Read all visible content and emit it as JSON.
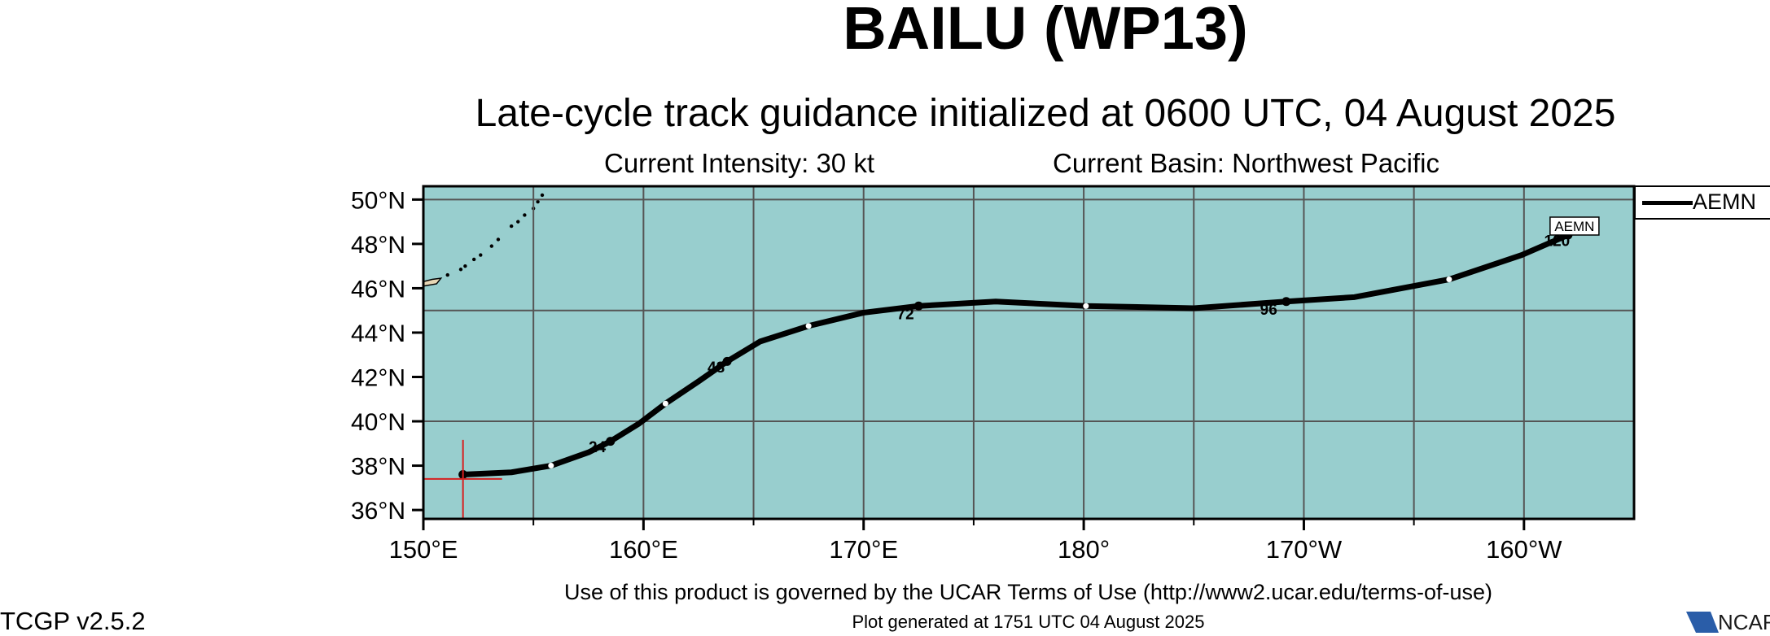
{
  "title": "BAILU (WP13)",
  "subtitle": "Late-cycle track guidance initialized at 0600 UTC, 04 August 2025",
  "intensity": "Current Intensity: 30 kt",
  "basin": "Current Basin: Northwest Pacific",
  "footer": {
    "terms": "Use of this product is governed by the UCAR Terms of Use (http://www2.ucar.edu/terms-of-use)",
    "generated": "Plot generated at 1751 UTC   04 August 2025",
    "version": "TCGP v2.5.2",
    "logo": "NCAR"
  },
  "legend": {
    "entries": [
      "AEMN"
    ]
  },
  "colors": {
    "ocean": "#98cece",
    "land": "#e8d7b5",
    "track": "#000000",
    "grid": "#555555",
    "current_position": "#d62020"
  },
  "chart_data": {
    "type": "map-track",
    "projection": "cylindrical",
    "lon_range_east": [
      150,
      205
    ],
    "lat_range": [
      35.6,
      50.6
    ],
    "lon_ticks": [
      {
        "lon": 150,
        "label": "150°E"
      },
      {
        "lon": 160,
        "label": "160°E"
      },
      {
        "lon": 170,
        "label": "170°E"
      },
      {
        "lon": 180,
        "label": "180°"
      },
      {
        "lon": 190,
        "label": "170°W"
      },
      {
        "lon": 200,
        "label": "160°W"
      }
    ],
    "lat_ticks": [
      {
        "lat": 36,
        "label": "36°N"
      },
      {
        "lat": 38,
        "label": "38°N"
      },
      {
        "lat": 40,
        "label": "40°N"
      },
      {
        "lat": 42,
        "label": "42°N"
      },
      {
        "lat": 44,
        "label": "44°N"
      },
      {
        "lat": 46,
        "label": "46°N"
      },
      {
        "lat": 48,
        "label": "48°N"
      },
      {
        "lat": 50,
        "label": "50°N"
      }
    ],
    "grid_lon": [
      155,
      160,
      165,
      170,
      175,
      180,
      185,
      190,
      195,
      200
    ],
    "grid_lat": [
      40,
      45,
      50
    ],
    "current_position": {
      "lon": 151.8,
      "lat": 37.4
    },
    "series": [
      {
        "name": "AEMN",
        "track": [
          [
            151.8,
            37.6
          ],
          [
            154,
            37.7
          ],
          [
            155.8,
            38.0
          ],
          [
            157.5,
            38.6
          ],
          [
            158.5,
            39.1
          ],
          [
            159.8,
            39.9
          ],
          [
            161,
            40.8
          ],
          [
            162.5,
            41.8
          ],
          [
            163.8,
            42.7
          ],
          [
            165.3,
            43.6
          ],
          [
            167.5,
            44.3
          ],
          [
            170,
            44.9
          ],
          [
            172.5,
            45.2
          ],
          [
            176,
            45.4
          ],
          [
            180.1,
            45.2
          ],
          [
            185,
            45.1
          ],
          [
            189.2,
            45.4
          ],
          [
            192.3,
            45.6
          ],
          [
            196.6,
            46.4
          ],
          [
            199.9,
            47.5
          ],
          [
            202,
            48.4
          ]
        ],
        "black_markers": [
          [
            151.8,
            37.6
          ],
          [
            158.5,
            39.1
          ],
          [
            163.8,
            42.7
          ],
          [
            172.5,
            45.2
          ],
          [
            189.2,
            45.4
          ],
          [
            202,
            48.4
          ]
        ],
        "white_markers": [
          [
            155.8,
            38.0
          ],
          [
            161,
            40.8
          ],
          [
            167.5,
            44.3
          ],
          [
            180.1,
            45.2
          ],
          [
            196.6,
            46.4
          ]
        ],
        "hour_labels": [
          {
            "text": "24",
            "lon": 157.9,
            "lat": 38.9
          },
          {
            "text": "48",
            "lon": 163.3,
            "lat": 42.5
          },
          {
            "text": "72",
            "lon": 171.9,
            "lat": 44.9
          },
          {
            "text": "96",
            "lon": 188.4,
            "lat": 45.1
          },
          {
            "text": "120",
            "lon": 201.5,
            "lat": 48.2
          }
        ],
        "end_label": "AEMN"
      }
    ],
    "islands": [
      [
        [
          150.0,
          46.1
        ],
        [
          150.6,
          46.2
        ],
        [
          150.8,
          46.45
        ],
        [
          150.4,
          46.4
        ],
        [
          150.0,
          46.3
        ]
      ],
      [
        [
          155.2,
          50.65
        ],
        [
          155.5,
          50.6
        ],
        [
          156.0,
          50.75
        ],
        [
          156.3,
          50.8
        ],
        [
          155.5,
          50.95
        ],
        [
          155.2,
          50.8
        ]
      ]
    ],
    "island_dots": [
      [
        151.1,
        46.6
      ],
      [
        151.7,
        46.85
      ],
      [
        151.9,
        47.0
      ],
      [
        152.3,
        47.3
      ],
      [
        152.6,
        47.5
      ],
      [
        153.1,
        47.9
      ],
      [
        153.4,
        48.2
      ],
      [
        154.0,
        48.8
      ],
      [
        154.3,
        49.0
      ],
      [
        154.6,
        49.3
      ],
      [
        155.0,
        49.6
      ],
      [
        155.2,
        49.9
      ],
      [
        155.4,
        50.2
      ]
    ]
  }
}
